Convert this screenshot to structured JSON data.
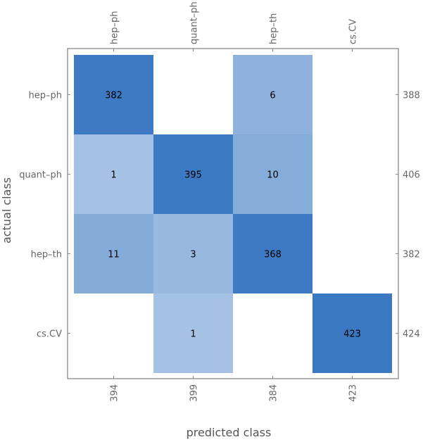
{
  "chart_data": {
    "type": "heatmap",
    "subtype": "confusion-matrix",
    "xlabel": "predicted class",
    "ylabel": "actual class",
    "x_categories": [
      "hep–ph",
      "quant–ph",
      "hep–th",
      "cs.CV"
    ],
    "y_categories": [
      "hep–ph",
      "quant–ph",
      "hep–th",
      "cs.CV"
    ],
    "matrix": [
      [
        382,
        null,
        6,
        null
      ],
      [
        1,
        395,
        10,
        null
      ],
      [
        11,
        3,
        368,
        null
      ],
      [
        null,
        1,
        null,
        423
      ]
    ],
    "row_totals": [
      388,
      406,
      382,
      424
    ],
    "column_totals": [
      394,
      399,
      384,
      423
    ],
    "color_max": "#3a78c2",
    "color_min": "#ffffff",
    "grid": false
  }
}
